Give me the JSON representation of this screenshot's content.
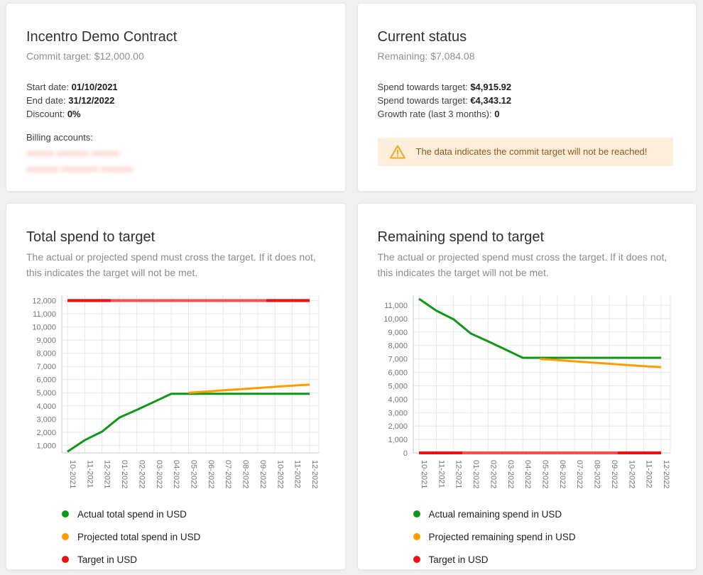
{
  "cards": {
    "contract": {
      "title": "Incentro Demo Contract",
      "subtitle": "Commit target: $12,000.00",
      "fields": [
        {
          "label": "Start date: ",
          "value": "01/10/2021"
        },
        {
          "label": "End date: ",
          "value": "31/12/2022"
        },
        {
          "label": "Discount: ",
          "value": "0%"
        }
      ],
      "billing_accounts_label": "Billing accounts:",
      "billing_accounts_redacted": [
        "xxxxxx xxxxxxx xxxxxx",
        "xxxxxxx xxxxxxxx xxxxxxx"
      ]
    },
    "status": {
      "title": "Current status",
      "subtitle": "Remaining: $7,084.08",
      "fields": [
        {
          "label": "Spend towards target: ",
          "value": "$4,915.92"
        },
        {
          "label": "Spend towards target: ",
          "value": "€4,343.12"
        },
        {
          "label": "Growth rate (last 3 months): ",
          "value": "0"
        }
      ],
      "warning": "The data indicates the commit target will not be reached!"
    },
    "total_spend": {
      "title": "Total spend to target",
      "description": "The actual or projected spend must cross the target. If it does not, this indicates the target will not be met."
    },
    "remaining_spend": {
      "title": "Remaining spend to target",
      "description": "The actual or projected spend must cross the target. If it does not, this indicates the target will not be met."
    }
  },
  "colors": {
    "actual": "#109618",
    "projected": "#ff9d00",
    "target": "#ee1111",
    "target_light": "#ff4d4d",
    "warning_bg": "#fdeedc",
    "warning_text": "#8f5c16",
    "warning_icon": "#f5a623"
  },
  "chart_data": [
    {
      "id": "total-spend-chart",
      "type": "line",
      "title": "Total spend to target",
      "categories": [
        "10-2021",
        "11-2021",
        "12-2021",
        "01-2022",
        "02-2022",
        "03-2022",
        "04-2022",
        "05-2022",
        "06-2022",
        "07-2022",
        "08-2022",
        "09-2022",
        "10-2022",
        "11-2022",
        "12-2022"
      ],
      "series": [
        {
          "name": "Actual total spend in USD",
          "color": "#109618",
          "values": [
            520,
            1400,
            2050,
            3110,
            3690,
            4300,
            4916,
            4916,
            4916,
            4916,
            4916,
            4916,
            4916,
            4916,
            4916
          ]
        },
        {
          "name": "Projected total spend in USD",
          "color": "#ff9d00",
          "values": [
            null,
            null,
            null,
            null,
            null,
            null,
            null,
            5000,
            5090,
            5180,
            5270,
            5360,
            5450,
            5540,
            5610
          ]
        },
        {
          "name": "Target in USD",
          "color": "#ee1111",
          "values": [
            12000,
            12000,
            12000,
            12000,
            12000,
            12000,
            12000,
            12000,
            12000,
            12000,
            12000,
            12000,
            12000,
            12000,
            12000
          ]
        }
      ],
      "xlabel": "",
      "ylabel": "",
      "y_ticks": [
        1000,
        2000,
        3000,
        4000,
        5000,
        6000,
        7000,
        8000,
        9000,
        10000,
        11000,
        12000
      ],
      "ylim": [
        430,
        12400
      ],
      "grid": true,
      "legend_position": "bottom"
    },
    {
      "id": "remaining-spend-chart",
      "type": "line",
      "title": "Remaining spend to target",
      "categories": [
        "10-2021",
        "11-2021",
        "12-2021",
        "01-2022",
        "02-2022",
        "03-2022",
        "04-2022",
        "05-2022",
        "06-2022",
        "07-2022",
        "08-2022",
        "09-2022",
        "10-2022",
        "11-2022",
        "12-2022"
      ],
      "series": [
        {
          "name": "Actual remaining spend in USD",
          "color": "#109618",
          "values": [
            11480,
            10600,
            9950,
            8890,
            8310,
            7700,
            7084,
            7084,
            7084,
            7084,
            7084,
            7084,
            7084,
            7084,
            7084
          ]
        },
        {
          "name": "Projected remaining spend in USD",
          "color": "#ff9d00",
          "values": [
            null,
            null,
            null,
            null,
            null,
            null,
            null,
            7000,
            6910,
            6820,
            6730,
            6640,
            6550,
            6460,
            6390
          ]
        },
        {
          "name": "Target in USD",
          "color": "#ee1111",
          "values": [
            0,
            0,
            0,
            0,
            0,
            0,
            0,
            0,
            0,
            0,
            0,
            0,
            0,
            0,
            0
          ]
        }
      ],
      "xlabel": "",
      "ylabel": "",
      "y_ticks": [
        0,
        1000,
        2000,
        3000,
        4000,
        5000,
        6000,
        7000,
        8000,
        9000,
        10000,
        11000
      ],
      "ylim": [
        0,
        11740
      ],
      "grid": true,
      "legend_position": "bottom"
    }
  ]
}
